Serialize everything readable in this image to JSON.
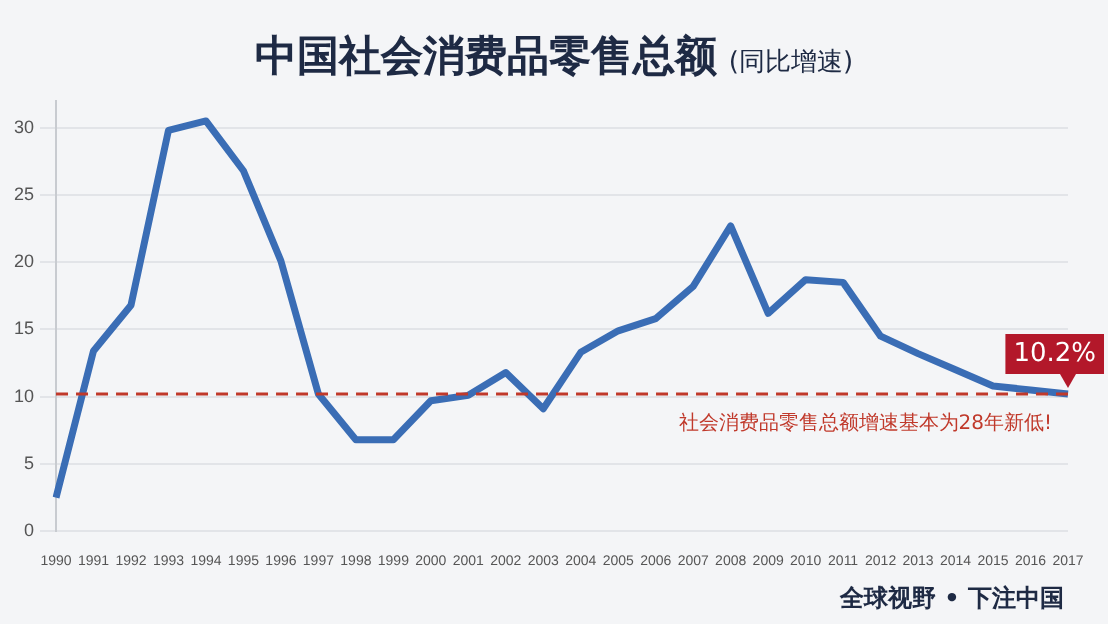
{
  "chart_data": {
    "type": "line",
    "title": "中国社会消费品零售总额",
    "subtitle": "(同比增速)",
    "categories": [
      "1990",
      "1991",
      "1992",
      "1993",
      "1994",
      "1995",
      "1996",
      "1997",
      "1998",
      "1999",
      "2000",
      "2001",
      "2002",
      "2003",
      "2004",
      "2005",
      "2006",
      "2007",
      "2008",
      "2009",
      "2010",
      "2011",
      "2012",
      "2013",
      "2014",
      "2015",
      "2016",
      "2017"
    ],
    "series": [
      {
        "color": "#3a6db5",
        "values": [
          2.5,
          13.4,
          16.8,
          29.8,
          30.5,
          26.8,
          20.1,
          10.2,
          6.8,
          6.8,
          9.7,
          10.1,
          11.8,
          9.1,
          13.3,
          14.9,
          15.8,
          18.2,
          22.7,
          16.2,
          18.7,
          18.5,
          14.5,
          13.2,
          12.0,
          10.8,
          10.5,
          10.2
        ]
      }
    ],
    "ylim": [
      0,
      32
    ],
    "yticks": [
      0,
      5,
      10,
      15,
      20,
      25,
      30
    ],
    "grid": "y",
    "legend": false,
    "marker": "none",
    "line_style": "solid",
    "ref_lines": [
      {
        "axis": "y",
        "value": 10.2,
        "label": "社会消费品零售总额增速基本为28年新低!",
        "color": "#c0392b",
        "line_style": "dashed"
      }
    ],
    "annotations": [
      {
        "text": "10.2%",
        "x": "2017",
        "y": 10.2
      },
      "全球视野 • 下注中国"
    ]
  }
}
